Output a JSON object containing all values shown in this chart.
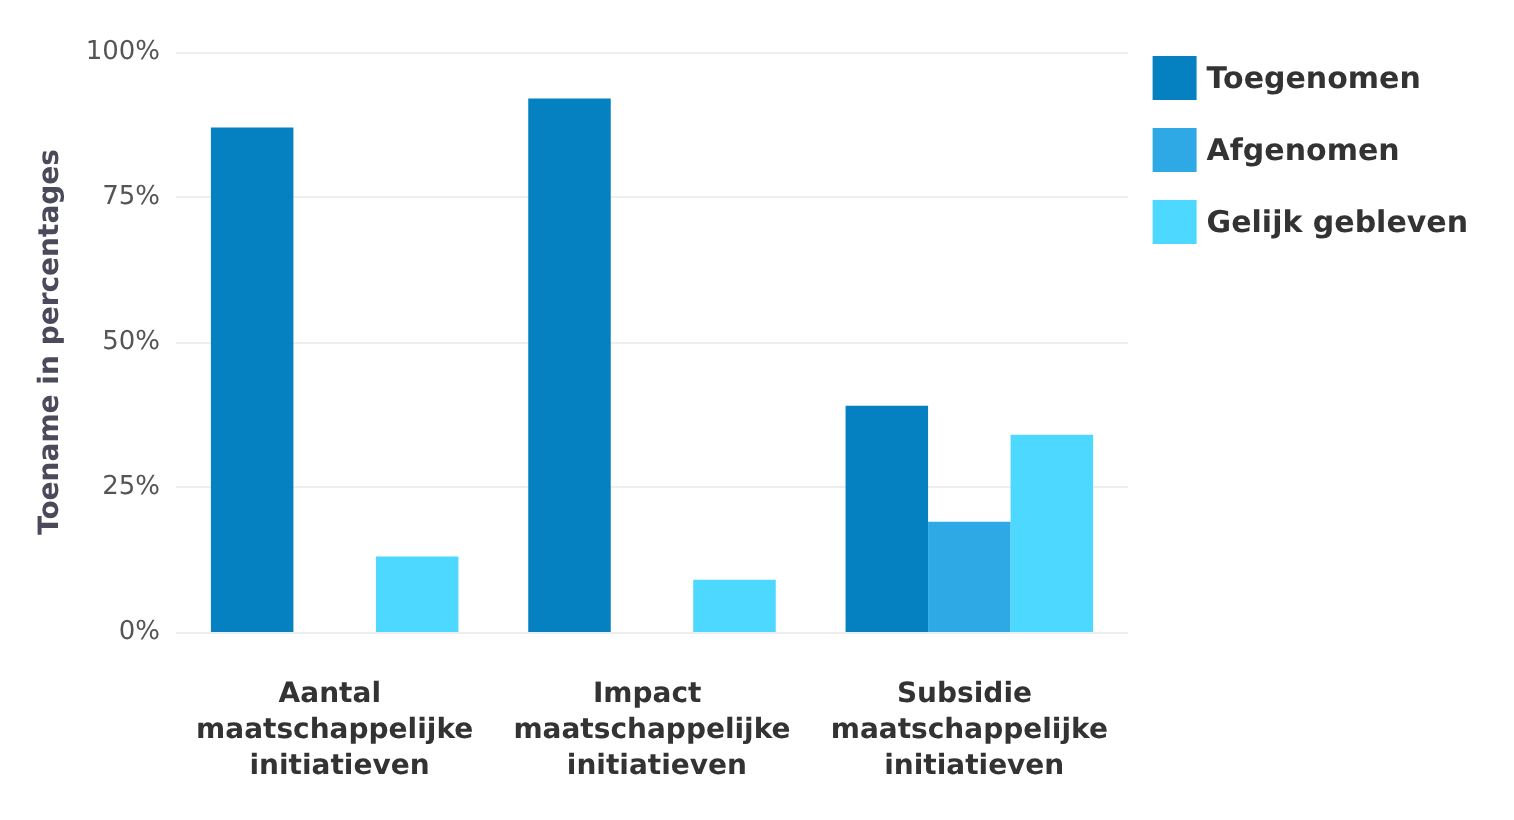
{
  "chart_data": {
    "type": "bar",
    "ylabel": "Toename in percentages",
    "categories": [
      "Aantal maatschappelijke initiatieven",
      "Impact maatschappelijke initiatieven",
      "Subsidie maatschappelijke initiatieven"
    ],
    "series": [
      {
        "name": "Toegenomen",
        "color": "#0581c1",
        "values": [
          87,
          92,
          39
        ]
      },
      {
        "name": "Afgenomen",
        "color": "#2fa8e6",
        "values": [
          0,
          0,
          19
        ]
      },
      {
        "name": "Gelijk gebleven",
        "color": "#4dd9ff",
        "values": [
          13,
          9,
          34
        ]
      }
    ],
    "ylim": [
      0,
      100
    ],
    "yticks": [
      {
        "value": 0,
        "label": "0%"
      },
      {
        "value": 25,
        "label": "25%"
      },
      {
        "value": 50,
        "label": "50%"
      },
      {
        "value": 75,
        "label": "75%"
      },
      {
        "value": 100,
        "label": "100%"
      }
    ],
    "grid": "y",
    "legend": "top right"
  }
}
